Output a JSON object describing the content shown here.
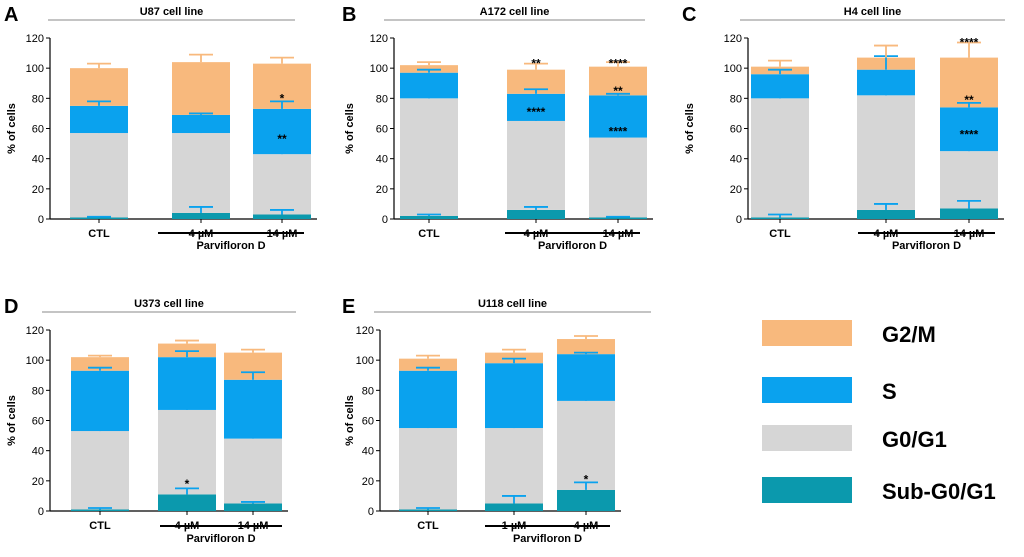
{
  "colors": {
    "g2m": "#f8b97d",
    "s": "#0aa2ee",
    "g0g1": "#d6d6d6",
    "subg0g1": "#0b99ad",
    "axis": "#000000",
    "title_rule": "#888888"
  },
  "ylabel": "% of cells",
  "treatment_label": "Parvifloron D",
  "legend": {
    "items": [
      {
        "key": "g2m",
        "label": "G2/M"
      },
      {
        "key": "s",
        "label": "S"
      },
      {
        "key": "g0g1",
        "label": "G0/G1"
      },
      {
        "key": "subg0g1",
        "label": "Sub-G0/G1"
      }
    ]
  },
  "chart_data": [
    {
      "type": "bar",
      "stacked": true,
      "panel": "A",
      "title": "U87 cell line",
      "categories": [
        "CTL",
        "4 µM",
        "14 µM"
      ],
      "treated_categories": [
        1,
        2
      ],
      "ylim": [
        0,
        120
      ],
      "yticks": [
        0,
        20,
        40,
        60,
        80,
        100,
        120
      ],
      "series": [
        {
          "name": "Sub-G0/G1",
          "key": "subg0g1",
          "values": [
            1,
            4,
            3
          ],
          "errors": [
            0.5,
            4,
            3
          ]
        },
        {
          "name": "G0/G1",
          "key": "g0g1",
          "values": [
            56,
            53,
            40
          ],
          "errors": [
            4,
            4,
            6
          ]
        },
        {
          "name": "S",
          "key": "s",
          "values": [
            18,
            12,
            30
          ],
          "errors": [
            3,
            1,
            5
          ]
        },
        {
          "name": "G2/M",
          "key": "g2m",
          "values": [
            25,
            35,
            30
          ],
          "errors": [
            3,
            5,
            4
          ]
        }
      ],
      "annotations": [
        {
          "category": 2,
          "y": 80,
          "text": "*"
        },
        {
          "category": 2,
          "y": 53,
          "text": "**"
        }
      ]
    },
    {
      "type": "bar",
      "stacked": true,
      "panel": "B",
      "title": "A172 cell line",
      "categories": [
        "CTL",
        "4 µM",
        "14 µM"
      ],
      "treated_categories": [
        1,
        2
      ],
      "ylim": [
        0,
        120
      ],
      "yticks": [
        0,
        20,
        40,
        60,
        80,
        100,
        120
      ],
      "series": [
        {
          "name": "Sub-G0/G1",
          "key": "subg0g1",
          "values": [
            2,
            6,
            1
          ],
          "errors": [
            1,
            2,
            0.5
          ]
        },
        {
          "name": "G0/G1",
          "key": "g0g1",
          "values": [
            78,
            59,
            53
          ],
          "errors": [
            1,
            4,
            2
          ]
        },
        {
          "name": "S",
          "key": "s",
          "values": [
            17,
            18,
            28
          ],
          "errors": [
            2,
            3,
            1
          ]
        },
        {
          "name": "G2/M",
          "key": "g2m",
          "values": [
            5,
            16,
            19
          ],
          "errors": [
            2,
            4,
            3
          ]
        }
      ],
      "annotations": [
        {
          "category": 1,
          "y": 103,
          "text": "**"
        },
        {
          "category": 1,
          "y": 71,
          "text": "****"
        },
        {
          "category": 2,
          "y": 103,
          "text": "****"
        },
        {
          "category": 2,
          "y": 85,
          "text": "**"
        },
        {
          "category": 2,
          "y": 58,
          "text": "****"
        }
      ]
    },
    {
      "type": "bar",
      "stacked": true,
      "panel": "C",
      "title": "H4 cell line",
      "categories": [
        "CTL",
        "4 µM",
        "14 µM"
      ],
      "treated_categories": [
        1,
        2
      ],
      "ylim": [
        0,
        120
      ],
      "yticks": [
        0,
        20,
        40,
        60,
        80,
        100,
        120
      ],
      "series": [
        {
          "name": "Sub-G0/G1",
          "key": "subg0g1",
          "values": [
            1,
            6,
            7
          ],
          "errors": [
            2,
            4,
            5
          ]
        },
        {
          "name": "G0/G1",
          "key": "g0g1",
          "values": [
            79,
            76,
            38
          ],
          "errors": [
            3,
            5,
            8
          ]
        },
        {
          "name": "S",
          "key": "s",
          "values": [
            16,
            17,
            29
          ],
          "errors": [
            3,
            9,
            3
          ]
        },
        {
          "name": "G2/M",
          "key": "g2m",
          "values": [
            5,
            8,
            33
          ],
          "errors": [
            4,
            8,
            10
          ]
        }
      ],
      "annotations": [
        {
          "category": 2,
          "y": 117,
          "text": "****"
        },
        {
          "category": 2,
          "y": 79,
          "text": "**"
        },
        {
          "category": 2,
          "y": 56,
          "text": "****"
        }
      ]
    },
    {
      "type": "bar",
      "stacked": true,
      "panel": "D",
      "title": "U373 cell line",
      "categories": [
        "CTL",
        "4 µM",
        "14 µM"
      ],
      "treated_categories": [
        1,
        2
      ],
      "ylim": [
        0,
        120
      ],
      "yticks": [
        0,
        20,
        40,
        60,
        80,
        100,
        120
      ],
      "series": [
        {
          "name": "Sub-G0/G1",
          "key": "subg0g1",
          "values": [
            1,
            11,
            5
          ],
          "errors": [
            1,
            4,
            1
          ]
        },
        {
          "name": "G0/G1",
          "key": "g0g1",
          "values": [
            52,
            56,
            43
          ],
          "errors": [
            2,
            4,
            5
          ]
        },
        {
          "name": "S",
          "key": "s",
          "values": [
            40,
            35,
            39
          ],
          "errors": [
            2,
            4,
            5
          ]
        },
        {
          "name": "G2/M",
          "key": "g2m",
          "values": [
            9,
            9,
            18
          ],
          "errors": [
            1,
            2,
            2
          ]
        }
      ],
      "annotations": [
        {
          "category": 1,
          "y": 18,
          "text": "*"
        }
      ]
    },
    {
      "type": "bar",
      "stacked": true,
      "panel": "E",
      "title": "U118 cell line",
      "categories": [
        "CTL",
        "1 µM",
        "4 µM"
      ],
      "treated_categories": [
        1,
        2
      ],
      "ylim": [
        0,
        120
      ],
      "yticks": [
        0,
        20,
        40,
        60,
        80,
        100,
        120
      ],
      "series": [
        {
          "name": "Sub-G0/G1",
          "key": "subg0g1",
          "values": [
            1,
            5,
            14
          ],
          "errors": [
            1,
            5,
            5
          ]
        },
        {
          "name": "G0/G1",
          "key": "g0g1",
          "values": [
            54,
            50,
            59
          ],
          "errors": [
            1,
            2,
            1
          ]
        },
        {
          "name": "S",
          "key": "s",
          "values": [
            38,
            43,
            31
          ],
          "errors": [
            2,
            3,
            1
          ]
        },
        {
          "name": "G2/M",
          "key": "g2m",
          "values": [
            8,
            7,
            10
          ],
          "errors": [
            2,
            2,
            2
          ]
        }
      ],
      "annotations": [
        {
          "category": 2,
          "y": 21,
          "text": "*"
        }
      ]
    }
  ]
}
